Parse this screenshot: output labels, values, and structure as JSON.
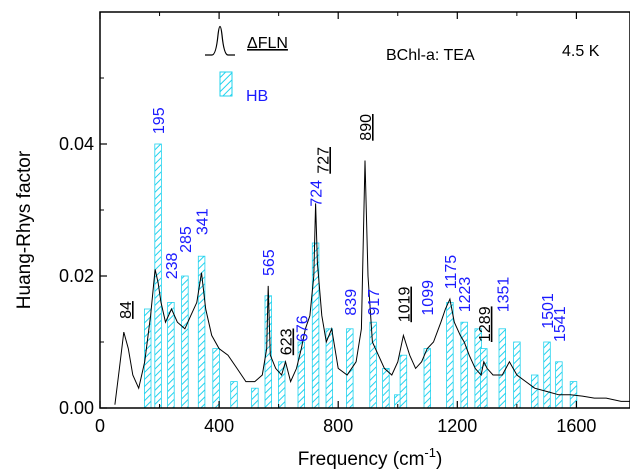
{
  "chart_data": {
    "type": "bar",
    "title": "",
    "xlabel": "Frequency (cm",
    "xlabel_sup": "-1",
    "xlabel_close": ")",
    "ylabel": "Huang-Rhys factor",
    "xlim": [
      0,
      1780
    ],
    "ylim": [
      0,
      0.06
    ],
    "xticks": [
      0,
      400,
      800,
      1200,
      1600
    ],
    "xtick_labels": [
      "0",
      "400",
      "800",
      "1200",
      "1600"
    ],
    "yticks": [
      0.0,
      0.02,
      0.04
    ],
    "ytick_labels": [
      "0.00",
      "0.02",
      "0.04"
    ],
    "annotations": {
      "sample": "BChl-a: TEA",
      "temperature": "4.5 K"
    },
    "legend": {
      "placement": "top-left",
      "fln_label": "ΔFLN",
      "hb_label": "HB"
    },
    "colors": {
      "hb_bars": "#22d3ee",
      "hb_labels": "#1a1aff",
      "fln_line": "#000000"
    },
    "series": [
      {
        "name": "HB",
        "style": "hatched-bars",
        "bar_width": 22,
        "x": [
          160,
          195,
          238,
          285,
          341,
          390,
          450,
          520,
          565,
          610,
          676,
          724,
          770,
          839,
          917,
          960,
          1000,
          1019,
          1099,
          1175,
          1223,
          1270,
          1289,
          1351,
          1400,
          1460,
          1501,
          1541,
          1590
        ],
        "y": [
          0.015,
          0.04,
          0.016,
          0.02,
          0.023,
          0.009,
          0.004,
          0.003,
          0.017,
          0.007,
          0.01,
          0.025,
          0.012,
          0.012,
          0.013,
          0.006,
          0.002,
          0.008,
          0.009,
          0.016,
          0.013,
          0.012,
          0.009,
          0.012,
          0.01,
          0.005,
          0.01,
          0.007,
          0.004
        ]
      },
      {
        "name": "ΔFLN",
        "style": "line",
        "x": [
          50,
          65,
          80,
          95,
          110,
          130,
          150,
          170,
          185,
          195,
          205,
          220,
          240,
          260,
          285,
          305,
          325,
          341,
          355,
          375,
          400,
          430,
          460,
          490,
          520,
          545,
          560,
          565,
          572,
          590,
          610,
          623,
          640,
          660,
          676,
          690,
          705,
          718,
          724,
          730,
          745,
          760,
          778,
          800,
          830,
          860,
          878,
          890,
          900,
          915,
          935,
          955,
          980,
          1000,
          1019,
          1040,
          1060,
          1080,
          1099,
          1120,
          1145,
          1160,
          1175,
          1190,
          1210,
          1223,
          1240,
          1260,
          1280,
          1289,
          1300,
          1320,
          1351,
          1375,
          1400,
          1430,
          1460,
          1501,
          1541,
          1580,
          1620,
          1660,
          1700,
          1750,
          1780
        ],
        "y": [
          0.0005,
          0.006,
          0.0115,
          0.009,
          0.005,
          0.003,
          0.007,
          0.014,
          0.021,
          0.019,
          0.016,
          0.013,
          0.015,
          0.013,
          0.012,
          0.014,
          0.016,
          0.0205,
          0.015,
          0.011,
          0.009,
          0.008,
          0.006,
          0.004,
          0.004,
          0.005,
          0.009,
          0.0185,
          0.008,
          0.006,
          0.005,
          0.007,
          0.004,
          0.006,
          0.009,
          0.012,
          0.014,
          0.02,
          0.031,
          0.022,
          0.014,
          0.01,
          0.012,
          0.006,
          0.005,
          0.007,
          0.012,
          0.0375,
          0.02,
          0.01,
          0.008,
          0.006,
          0.005,
          0.007,
          0.011,
          0.008,
          0.006,
          0.007,
          0.009,
          0.01,
          0.013,
          0.015,
          0.0165,
          0.013,
          0.011,
          0.01,
          0.008,
          0.006,
          0.005,
          0.007,
          0.006,
          0.005,
          0.005,
          0.007,
          0.005,
          0.004,
          0.003,
          0.0025,
          0.002,
          0.002,
          0.0018,
          0.0015,
          0.0015,
          0.001,
          0.001
        ]
      }
    ],
    "peak_labels": [
      {
        "text": "84",
        "x": 84,
        "y": 0.0135,
        "color": "black",
        "underline": true
      },
      {
        "text": "195",
        "x": 195,
        "y": 0.0415,
        "color": "blue",
        "underline": false
      },
      {
        "text": "238",
        "x": 238,
        "y": 0.0195,
        "color": "blue",
        "underline": false
      },
      {
        "text": "285",
        "x": 285,
        "y": 0.0235,
        "color": "blue",
        "underline": false
      },
      {
        "text": "341",
        "x": 341,
        "y": 0.0262,
        "color": "blue",
        "underline": false
      },
      {
        "text": "565",
        "x": 565,
        "y": 0.02,
        "color": "blue",
        "underline": false
      },
      {
        "text": "623",
        "x": 623,
        "y": 0.008,
        "color": "black",
        "underline": true
      },
      {
        "text": "676",
        "x": 676,
        "y": 0.01,
        "color": "blue",
        "underline": false
      },
      {
        "text": "724",
        "x": 724,
        "y": 0.0305,
        "color": "blue",
        "underline": false
      },
      {
        "text": "727",
        "x": 747,
        "y": 0.0355,
        "color": "black",
        "underline": true
      },
      {
        "text": "839",
        "x": 839,
        "y": 0.014,
        "color": "blue",
        "underline": false
      },
      {
        "text": "890",
        "x": 890,
        "y": 0.0405,
        "color": "black",
        "underline": true
      },
      {
        "text": "917",
        "x": 917,
        "y": 0.014,
        "color": "blue",
        "underline": false
      },
      {
        "text": "1019",
        "x": 1019,
        "y": 0.013,
        "color": "black",
        "underline": true
      },
      {
        "text": "1099",
        "x": 1099,
        "y": 0.014,
        "color": "blue",
        "underline": false
      },
      {
        "text": "1175",
        "x": 1175,
        "y": 0.018,
        "color": "blue",
        "underline": false
      },
      {
        "text": "1223",
        "x": 1223,
        "y": 0.0145,
        "color": "blue",
        "underline": false
      },
      {
        "text": "1289",
        "x": 1289,
        "y": 0.01,
        "color": "black",
        "underline": true
      },
      {
        "text": "1351",
        "x": 1351,
        "y": 0.0145,
        "color": "blue",
        "underline": false
      },
      {
        "text": "1501",
        "x": 1501,
        "y": 0.012,
        "color": "blue",
        "underline": false
      },
      {
        "text": "1541",
        "x": 1541,
        "y": 0.01,
        "color": "blue",
        "underline": false
      }
    ]
  }
}
